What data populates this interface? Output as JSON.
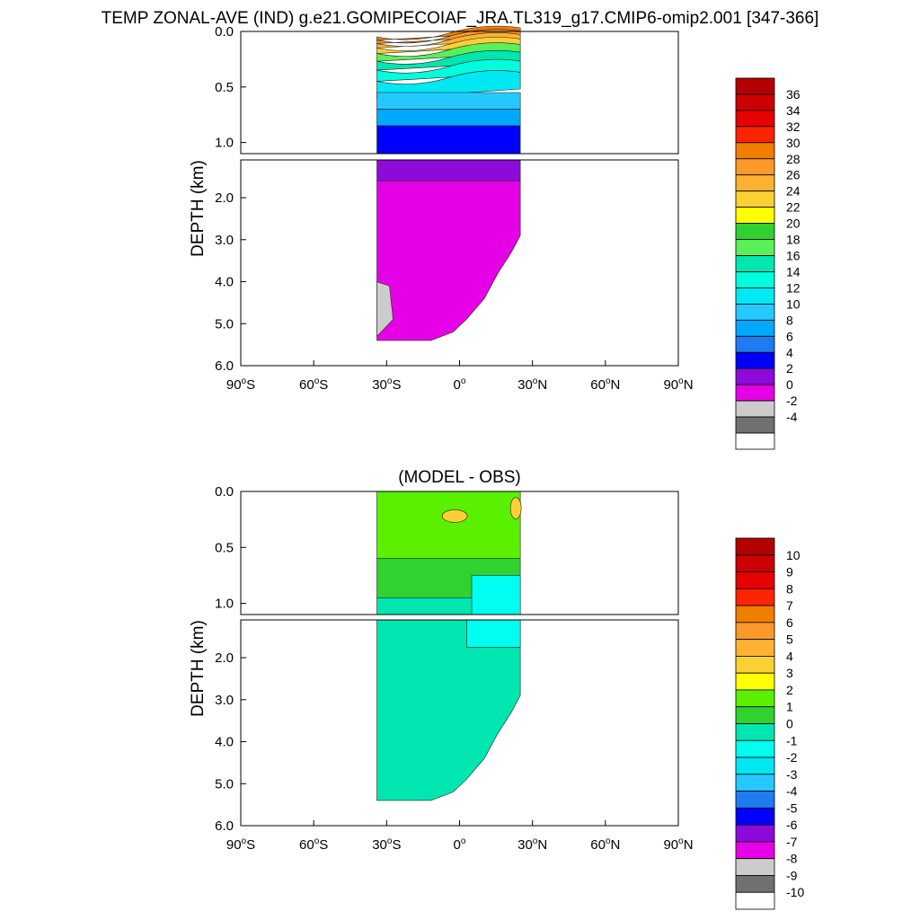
{
  "title": "TEMP ZONAL-AVE (IND) g.e21.GOMIPECOIAF_JRA.TL319_g17.CMIP6-omip2.001 [347-366]",
  "chart_data": [
    {
      "type": "heatmap",
      "title": "",
      "xlabel": "",
      "ylabel": "DEPTH (km)",
      "x_ticks": [
        "90°S",
        "60°S",
        "30°S",
        "0°",
        "30°N",
        "60°N",
        "90°N"
      ],
      "y_ticks_upper": [
        "0.0",
        "0.5",
        "1.0"
      ],
      "y_ticks_lower": [
        "2.0",
        "3.0",
        "4.0",
        "5.0",
        "6.0"
      ],
      "xlim": [
        -90,
        90
      ],
      "ylim": [
        6.0,
        0.0
      ],
      "upper_panel_range_km": [
        0.0,
        1.1
      ],
      "data_extent": {
        "lat": [
          -34,
          25
        ],
        "max_depth_km": 5.4
      },
      "colorbar": {
        "labels": [
          "36",
          "34",
          "32",
          "30",
          "28",
          "26",
          "24",
          "22",
          "20",
          "18",
          "16",
          "14",
          "12",
          "10",
          "8",
          "6",
          "4",
          "2",
          "0",
          "-2",
          "-4"
        ],
        "colors": [
          "#B30000",
          "#CC0000",
          "#E60000",
          "#FF2400",
          "#F07E00",
          "#FB9A2A",
          "#FFB134",
          "#FBD035",
          "#FFFF00",
          "#2FD22F",
          "#5AF05A",
          "#00E6B0",
          "#00FFDC",
          "#00E8F2",
          "#26C9FF",
          "#00A8FF",
          "#1E7CF0",
          "#0000FF",
          "#8C0BD9",
          "#E600E6",
          "#CCCCCC",
          "#707070",
          "#FFFFFF"
        ]
      }
    },
    {
      "type": "heatmap",
      "title": "(MODEL - OBS)",
      "xlabel": "",
      "ylabel": "DEPTH (km)",
      "x_ticks": [
        "90°S",
        "60°S",
        "30°S",
        "0°",
        "30°N",
        "60°N",
        "90°N"
      ],
      "y_ticks_upper": [
        "0.0",
        "0.5",
        "1.0"
      ],
      "y_ticks_lower": [
        "2.0",
        "3.0",
        "4.0",
        "5.0",
        "6.0"
      ],
      "xlim": [
        -90,
        90
      ],
      "ylim": [
        6.0,
        0.0
      ],
      "upper_panel_range_km": [
        0.0,
        1.1
      ],
      "data_extent": {
        "lat": [
          -34,
          25
        ],
        "max_depth_km": 5.4
      },
      "colorbar": {
        "labels": [
          "10",
          "9",
          "8",
          "7",
          "6",
          "5",
          "4",
          "3",
          "2",
          "1",
          "0",
          "-1",
          "-2",
          "-3",
          "-4",
          "-5",
          "-6",
          "-7",
          "-8",
          "-9",
          "-10"
        ],
        "colors": [
          "#B30000",
          "#CC0000",
          "#E60000",
          "#FF2400",
          "#F07E00",
          "#FB9A2A",
          "#FFB134",
          "#FBD035",
          "#FFFF00",
          "#5AF000",
          "#2FD22F",
          "#00E6B0",
          "#00FFF0",
          "#00E8F2",
          "#26C9FF",
          "#1E7CF0",
          "#0000FF",
          "#8C0BD9",
          "#E600E6",
          "#CCCCCC",
          "#707070",
          "#FFFFFF"
        ]
      }
    }
  ]
}
